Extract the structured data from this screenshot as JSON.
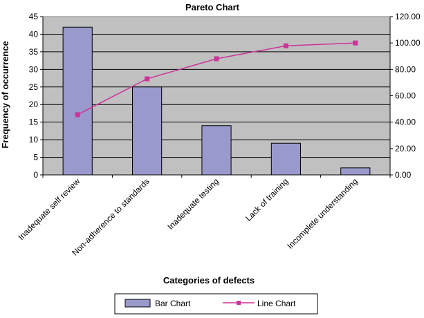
{
  "chart_data": {
    "type": "bar",
    "title": "Pareto Chart",
    "xlabel": "Categories of defects",
    "ylabel": "Frequency of occurrence",
    "categories": [
      "Inadequate self review",
      "Non-adherence to standards",
      "Inadequate testing",
      "Lack of training",
      "Incomplete understanding"
    ],
    "series": [
      {
        "name": "Bar Chart",
        "type": "bar",
        "axis": "left",
        "values": [
          42,
          25,
          14,
          9,
          2
        ]
      },
      {
        "name": "Line Chart",
        "type": "line",
        "axis": "right",
        "values": [
          45.65,
          72.83,
          88.04,
          97.83,
          100.0
        ]
      }
    ],
    "ylim": [
      0,
      45
    ],
    "y_ticks": [
      "0",
      "5",
      "10",
      "15",
      "20",
      "25",
      "30",
      "35",
      "40",
      "45"
    ],
    "y2lim": [
      0,
      120
    ],
    "y2_ticks": [
      "0.00",
      "20.00",
      "40.00",
      "60.00",
      "80.00",
      "100.00",
      "120.00"
    ],
    "grid": true,
    "legend_position": "bottom",
    "colors": {
      "plot_background": "#c0c0c0",
      "bar_fill": "#9999cc",
      "bar_stroke": "#000000",
      "line": "#cc3399",
      "marker": "#cc3399"
    }
  }
}
